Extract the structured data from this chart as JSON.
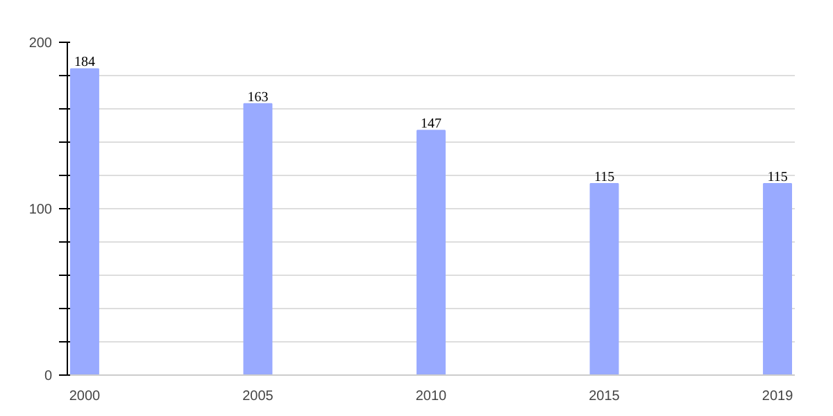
{
  "chart_data": {
    "type": "bar",
    "categories": [
      "2000",
      "2005",
      "2010",
      "2015",
      "2019"
    ],
    "values": [
      184,
      163,
      147,
      115,
      115
    ],
    "color": "#99aaff",
    "data_labels": true,
    "grid": "y",
    "ylim": [
      0,
      200
    ],
    "yticks": [
      0,
      {
        "value": 20,
        "label": null
      },
      {
        "value": 40,
        "label": null
      },
      {
        "value": 60,
        "label": null
      },
      {
        "value": 80,
        "label": null
      },
      100,
      {
        "value": 120,
        "label": null
      },
      {
        "value": 140,
        "label": null
      },
      {
        "value": 160,
        "label": null
      },
      {
        "value": 180,
        "label": null
      },
      200
    ]
  }
}
